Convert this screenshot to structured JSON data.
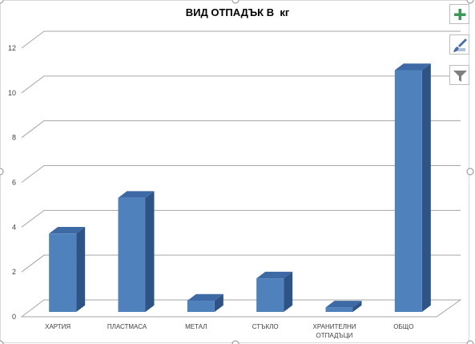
{
  "chart_data": {
    "type": "bar",
    "title": "ВИД ОТПАДЪК В  кг",
    "categories": [
      "ХАРТИЯ",
      "ПЛАСТМАСА",
      "МЕТАЛ",
      "СТЪКЛО",
      "ХРАНИТЕЛНИ ОТПАДЪЦИ",
      "ОБЩО"
    ],
    "values": [
      3.5,
      5.1,
      0.5,
      1.5,
      0.2,
      10.8
    ],
    "ylim": [
      0,
      12
    ],
    "yticks": [
      0,
      2,
      4,
      6,
      8,
      10,
      12
    ],
    "grid": true,
    "style": "3d-column"
  },
  "colors": {
    "bar_front": "#4f81bd",
    "bar_top": "#3d6aa5",
    "bar_side": "#2e5485",
    "gridline": "#a6a6a6",
    "add_icon": "#3a9a57"
  },
  "toolbar": {
    "buttons": [
      {
        "icon": "plus-icon",
        "tooltip": ""
      },
      {
        "icon": "brush-icon",
        "tooltip": ""
      },
      {
        "icon": "filter-icon",
        "tooltip": ""
      }
    ]
  }
}
